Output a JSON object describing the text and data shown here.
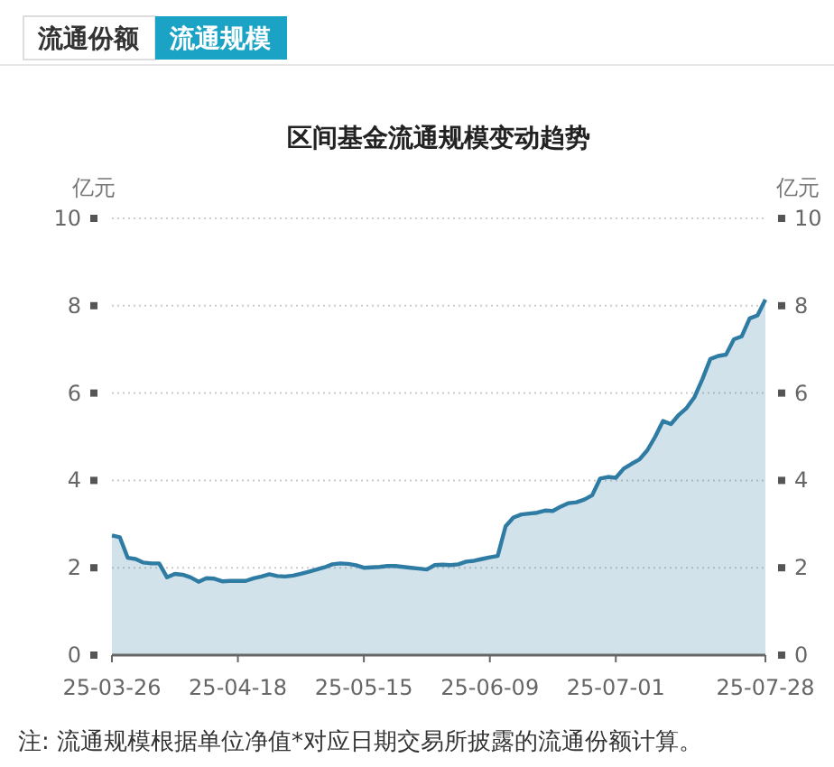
{
  "chart_data": {
    "type": "area",
    "title": "区间基金流通规模变动趋势",
    "ylabel": "亿元",
    "y2label": "亿元",
    "annotations": [
      "流通份额",
      "流通规模",
      "注:  流通规模根据单位净值*对应日期交易所披露的流通份额计算。"
    ],
    "categories": [
      "25-03-26",
      null,
      null,
      null,
      null,
      null,
      null,
      null,
      null,
      null,
      null,
      null,
      null,
      null,
      null,
      null,
      "25-04-18",
      null,
      null,
      null,
      null,
      null,
      null,
      null,
      null,
      null,
      null,
      null,
      null,
      null,
      null,
      null,
      "25-05-15",
      null,
      null,
      null,
      null,
      null,
      null,
      null,
      null,
      null,
      null,
      null,
      null,
      null,
      null,
      null,
      "25-06-09",
      null,
      null,
      null,
      null,
      null,
      null,
      null,
      null,
      null,
      null,
      null,
      null,
      null,
      null,
      null,
      "25-07-01",
      null,
      null,
      null,
      null,
      null,
      null,
      null,
      null,
      null,
      null,
      null,
      null,
      null,
      null,
      null,
      null,
      null,
      null,
      "25-07-28"
    ],
    "series": [
      {
        "color": "#2e7ba3",
        "values": [
          2.74,
          2.7,
          2.23,
          2.2,
          2.12,
          2.1,
          2.1,
          1.78,
          1.86,
          1.84,
          1.78,
          1.68,
          1.76,
          1.75,
          1.69,
          1.7,
          1.7,
          1.7,
          1.76,
          1.8,
          1.85,
          1.81,
          1.8,
          1.82,
          1.86,
          1.91,
          1.96,
          2.01,
          2.08,
          2.1,
          2.09,
          2.06,
          2.0,
          2.01,
          2.02,
          2.04,
          2.04,
          2.02,
          2.0,
          1.98,
          1.96,
          2.06,
          2.07,
          2.06,
          2.08,
          2.14,
          2.16,
          2.2,
          2.24,
          2.27,
          2.95,
          3.15,
          3.22,
          3.24,
          3.26,
          3.31,
          3.3,
          3.4,
          3.48,
          3.5,
          3.56,
          3.66,
          4.04,
          4.08,
          4.06,
          4.27,
          4.38,
          4.48,
          4.69,
          5.0,
          5.36,
          5.29,
          5.5,
          5.66,
          5.91,
          6.32,
          6.78,
          6.85,
          6.88,
          7.23,
          7.3,
          7.71,
          7.78,
          8.14
        ]
      }
    ],
    "ylim": [
      0,
      10
    ],
    "yticks": [
      0,
      2,
      4,
      6,
      8,
      10
    ],
    "y2lim": [
      0,
      10
    ],
    "y2ticks": [
      0,
      2,
      4,
      6,
      8,
      10
    ],
    "grid": "y",
    "marker": "none",
    "line_style": "solid"
  }
}
